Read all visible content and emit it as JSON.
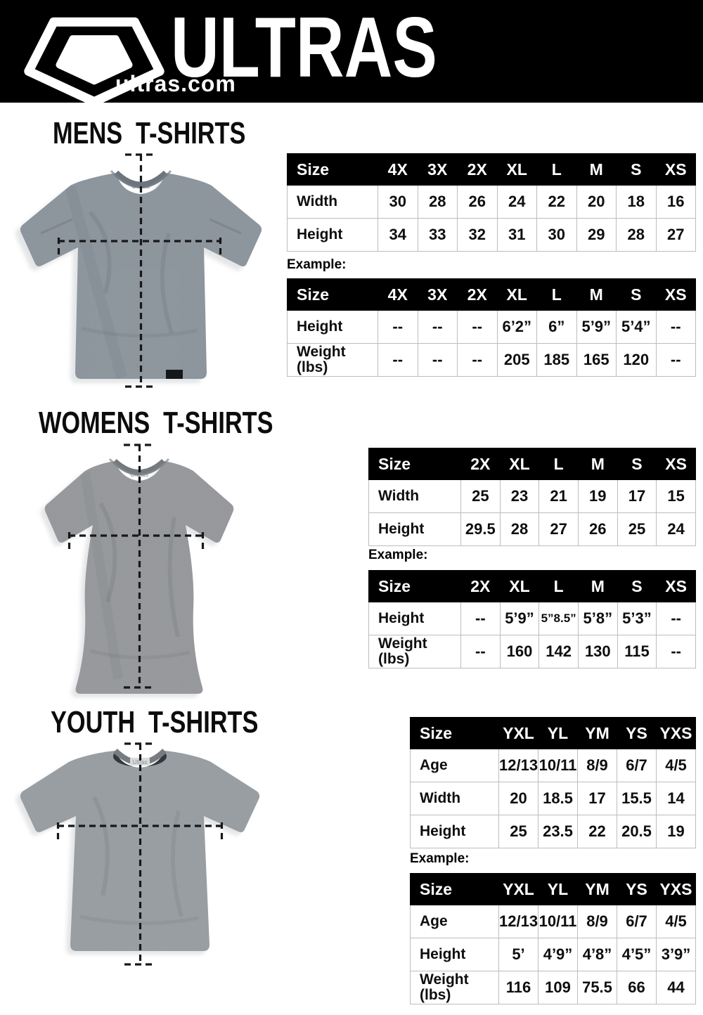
{
  "colors": {
    "page_bg": "#ffffff",
    "header_bg": "#000000",
    "table_header_bg": "#000000",
    "table_header_text": "#ffffff",
    "table_border": "#bdbdbd",
    "mens_shirt": "#8d959d",
    "womens_shirt": "#97999c",
    "youth_shirt": "#999fa3"
  },
  "header": {
    "brand": "ULTRAS",
    "site": "ultras.com",
    "logo_icon": "pentagon-crest"
  },
  "mens": {
    "title": "MENS T-SHIRTS",
    "image": "mens-heather-gray-tshirt-with-measurement-lines",
    "size_table": {
      "header": [
        "Size",
        "4X",
        "3X",
        "2X",
        "XL",
        "L",
        "M",
        "S",
        "XS"
      ],
      "rows": [
        [
          "Width",
          "30",
          "28",
          "26",
          "24",
          "22",
          "20",
          "18",
          "16"
        ],
        [
          "Height",
          "34",
          "33",
          "32",
          "31",
          "30",
          "29",
          "28",
          "27"
        ]
      ]
    },
    "example_label": "Example:",
    "example_table": {
      "header": [
        "Size",
        "4X",
        "3X",
        "2X",
        "XL",
        "L",
        "M",
        "S",
        "XS"
      ],
      "rows": [
        [
          "Height",
          "--",
          "--",
          "--",
          "6’2”",
          "6”",
          "5’9”",
          "5’4”",
          "--"
        ],
        [
          "Weight (lbs)",
          "--",
          "--",
          "--",
          "205",
          "185",
          "165",
          "120",
          "--"
        ]
      ]
    }
  },
  "womens": {
    "title": "WOMENS T-SHIRTS",
    "image": "womens-heather-gray-tshirt-with-measurement-lines",
    "size_table": {
      "header": [
        "Size",
        "2X",
        "XL",
        "L",
        "M",
        "S",
        "XS"
      ],
      "rows": [
        [
          "Width",
          "25",
          "23",
          "21",
          "19",
          "17",
          "15"
        ],
        [
          "Height",
          "29.5",
          "28",
          "27",
          "26",
          "25",
          "24"
        ]
      ]
    },
    "example_label": "Example:",
    "example_table": {
      "header": [
        "Size",
        "2X",
        "XL",
        "L",
        "M",
        "S",
        "XS"
      ],
      "rows": [
        [
          "Height",
          "--",
          "5’9”",
          "5”8.5”",
          "5’8”",
          "5’3”",
          "--"
        ],
        [
          "Weight (lbs)",
          "--",
          "160",
          "142",
          "130",
          "115",
          "--"
        ]
      ]
    }
  },
  "youth": {
    "title": "YOUTH T-SHIRTS",
    "image": "youth-heather-gray-tshirt-with-measurement-lines",
    "size_table": {
      "header": [
        "Size",
        "YXL",
        "YL",
        "YM",
        "YS",
        "YXS"
      ],
      "rows": [
        [
          "Age",
          "12/13",
          "10/11",
          "8/9",
          "6/7",
          "4/5"
        ],
        [
          "Width",
          "20",
          "18.5",
          "17",
          "15.5",
          "14"
        ],
        [
          "Height",
          "25",
          "23.5",
          "22",
          "20.5",
          "19"
        ]
      ]
    },
    "example_label": "Example:",
    "example_table": {
      "header": [
        "Size",
        "YXL",
        "YL",
        "YM",
        "YS",
        "YXS"
      ],
      "rows": [
        [
          "Age",
          "12/13",
          "10/11",
          "8/9",
          "6/7",
          "4/5"
        ],
        [
          "Height",
          "5’",
          "4’9”",
          "4’8”",
          "4’5”",
          "3’9”"
        ],
        [
          "Weight (lbs)",
          "116",
          "109",
          "75.5",
          "66",
          "44"
        ]
      ]
    }
  }
}
